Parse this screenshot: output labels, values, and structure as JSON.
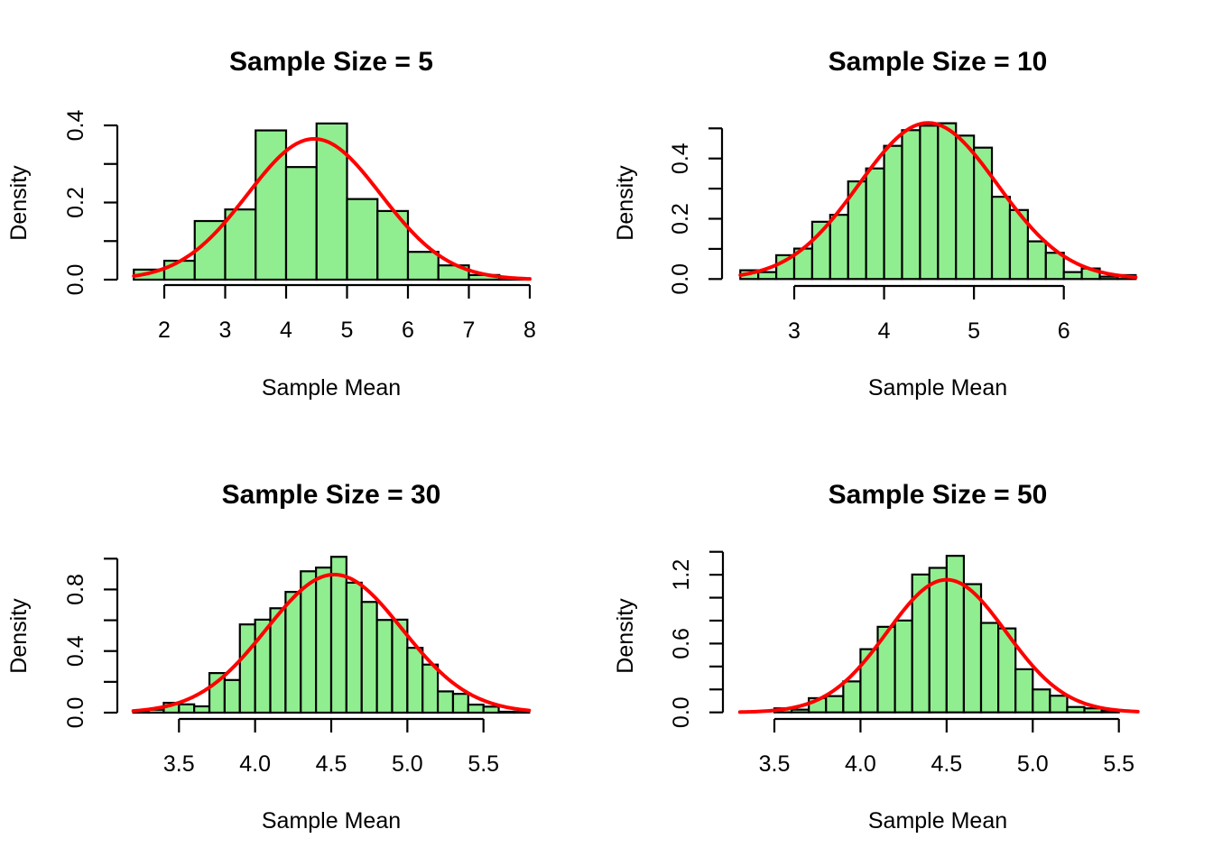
{
  "chart_data": [
    {
      "type": "bar",
      "title": "Sample Size = 5",
      "xlabel": "Sample Mean",
      "ylabel": "Density",
      "x_ticks": [
        2,
        3,
        4,
        5,
        6,
        7,
        8
      ],
      "x_tick_labels": [
        "2",
        "3",
        "4",
        "5",
        "6",
        "7",
        "8"
      ],
      "y_ticks": [
        0,
        0.1,
        0.2,
        0.3,
        0.4
      ],
      "y_tick_labels": [
        {
          "value": 0,
          "label": "0.0"
        },
        {
          "value": 0.2,
          "label": "0.2"
        },
        {
          "value": 0.4,
          "label": "0.4"
        }
      ],
      "bin_start": 1.5,
      "bin_width": 0.5,
      "values": [
        0.026,
        0.049,
        0.152,
        0.182,
        0.387,
        0.292,
        0.405,
        0.209,
        0.178,
        0.072,
        0.037,
        0.012,
        0.003
      ],
      "curve": {
        "type": "normal",
        "mean": 4.46,
        "sd": 1.093,
        "from": 1.5,
        "to": 8.0
      },
      "fill_color": "#90EE90",
      "curve_color": "#FF0000",
      "grid": false
    },
    {
      "type": "bar",
      "title": "Sample Size = 10",
      "xlabel": "Sample Mean",
      "ylabel": "Density",
      "x_ticks": [
        3,
        4,
        5,
        6
      ],
      "x_tick_labels": [
        "3",
        "4",
        "5",
        "6"
      ],
      "y_ticks": [
        0,
        0.1,
        0.2,
        0.3,
        0.4,
        0.5
      ],
      "y_tick_labels": [
        {
          "value": 0,
          "label": "0.0"
        },
        {
          "value": 0.2,
          "label": "0.2"
        },
        {
          "value": 0.4,
          "label": "0.4"
        }
      ],
      "bin_start": 2.4,
      "bin_width": 0.2,
      "values": [
        0.029,
        0.023,
        0.079,
        0.101,
        0.19,
        0.213,
        0.324,
        0.367,
        0.442,
        0.494,
        0.509,
        0.517,
        0.476,
        0.436,
        0.273,
        0.229,
        0.125,
        0.087,
        0.023,
        0.035,
        0.008,
        0.013
      ],
      "curve": {
        "type": "normal",
        "mean": 4.49,
        "sd": 0.77,
        "from": 2.4,
        "to": 6.8
      },
      "fill_color": "#90EE90",
      "curve_color": "#FF0000",
      "grid": false
    },
    {
      "type": "bar",
      "title": "Sample Size = 30",
      "xlabel": "Sample Mean",
      "ylabel": "Density",
      "x_ticks": [
        3.5,
        4.0,
        4.5,
        5.0,
        5.5
      ],
      "x_tick_labels": [
        "3.5",
        "4.0",
        "4.5",
        "5.0",
        "5.5"
      ],
      "y_ticks": [
        0,
        0.2,
        0.4,
        0.6,
        0.8,
        1.0
      ],
      "y_tick_labels": [
        {
          "value": 0,
          "label": "0.0"
        },
        {
          "value": 0.4,
          "label": "0.4"
        },
        {
          "value": 0.8,
          "label": "0.8"
        }
      ],
      "bin_start": 3.2,
      "bin_width": 0.1,
      "values": [
        0.006,
        0.019,
        0.064,
        0.054,
        0.041,
        0.257,
        0.212,
        0.573,
        0.604,
        0.678,
        0.784,
        0.918,
        0.942,
        1.012,
        0.844,
        0.719,
        0.602,
        0.604,
        0.421,
        0.312,
        0.138,
        0.122,
        0.052,
        0.039,
        0.006,
        0.006
      ],
      "curve": {
        "type": "normal",
        "mean": 4.52,
        "sd": 0.445,
        "from": 3.2,
        "to": 5.8
      },
      "fill_color": "#90EE90",
      "curve_color": "#FF0000",
      "grid": false
    },
    {
      "type": "bar",
      "title": "Sample Size = 50",
      "xlabel": "Sample Mean",
      "ylabel": "Density",
      "x_ticks": [
        3.5,
        4.0,
        4.5,
        5.0,
        5.5
      ],
      "x_tick_labels": [
        "3.5",
        "4.0",
        "4.5",
        "5.0",
        "5.5"
      ],
      "y_ticks": [
        0,
        0.2,
        0.4,
        0.6,
        0.8,
        1.0,
        1.2,
        1.4
      ],
      "y_tick_labels": [
        {
          "value": 0,
          "label": "0.0"
        },
        {
          "value": 0.6,
          "label": "0.6"
        },
        {
          "value": 1.2,
          "label": "1.2"
        }
      ],
      "bin_start": 3.5,
      "bin_width": 0.1,
      "values": [
        0.035,
        0.024,
        0.124,
        0.142,
        0.27,
        0.551,
        0.746,
        0.801,
        1.202,
        1.26,
        1.365,
        1.118,
        0.78,
        0.732,
        0.376,
        0.2,
        0.145,
        0.047,
        0.035,
        0.016
      ],
      "curve": {
        "type": "normal",
        "mean": 4.5,
        "sd": 0.345,
        "from": 3.3,
        "to": 5.61
      },
      "fill_color": "#90EE90",
      "curve_color": "#FF0000",
      "grid": false
    }
  ]
}
